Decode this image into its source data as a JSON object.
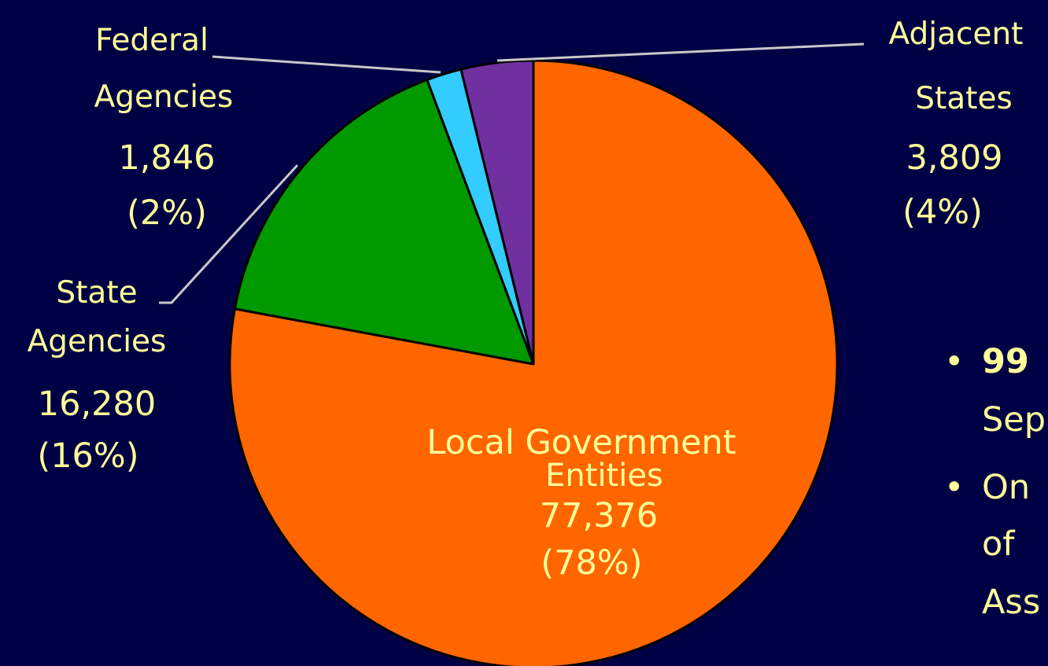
{
  "chart_data": {
    "type": "pie",
    "title": "",
    "slices": [
      {
        "label": "Local Government Entities",
        "value": 77376,
        "percent": 78,
        "color": "#ff6600"
      },
      {
        "label": "State Agencies",
        "value": 16280,
        "percent": 16,
        "color": "#009900"
      },
      {
        "label": "Federal Agencies",
        "value": 1846,
        "percent": 2,
        "color": "#33ccff"
      },
      {
        "label": "Adjacent States",
        "value": 3809,
        "percent": 4,
        "color": "#7030a0"
      }
    ],
    "labels": {
      "local": {
        "lines": [
          "Local Government",
          "Entities",
          "77,376",
          "(78%)"
        ]
      },
      "state": {
        "lines": [
          "State",
          "Agencies",
          "16,280",
          "(16%)"
        ]
      },
      "federal": {
        "lines": [
          "Federal",
          "Agencies",
          "1,846",
          "(2%)"
        ]
      },
      "adjacent": {
        "lines": [
          "Adjacent",
          "States",
          "3,809",
          "(4%)"
        ]
      }
    }
  },
  "bullets": [
    {
      "bold": "99",
      "text": ""
    },
    {
      "bold": "",
      "text": "Sep"
    },
    {
      "bold": "",
      "text": "On"
    },
    {
      "bold": "",
      "text": "of"
    },
    {
      "bold": "",
      "text": "Ass"
    }
  ],
  "colors": {
    "background": "#000044",
    "text": "#ffff99",
    "leader": "#c8c8c8"
  }
}
